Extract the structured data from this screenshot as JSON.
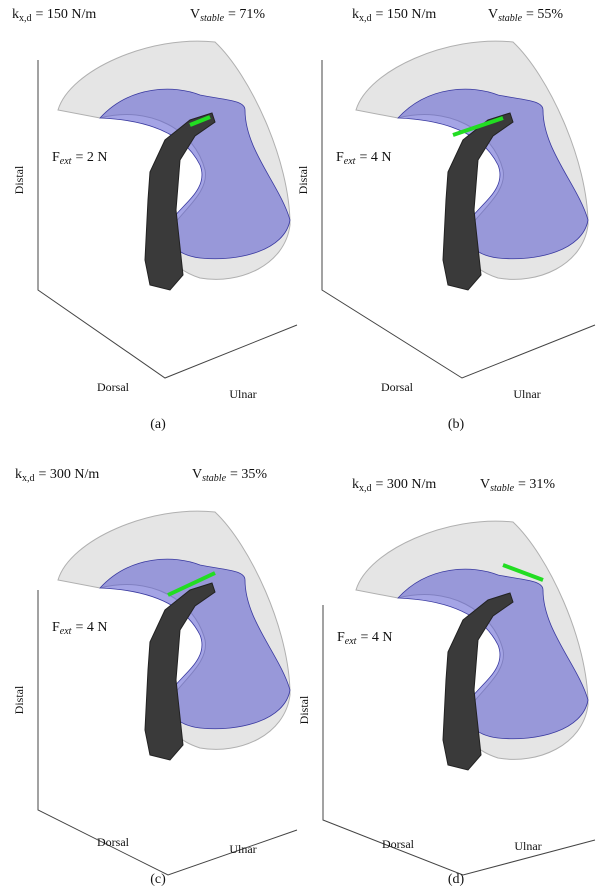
{
  "panels": [
    {
      "stiffness": {
        "symbol": "k",
        "subscript": "x,d",
        "value": "= 150 N/m"
      },
      "volume": {
        "symbol": "V",
        "subscript": "stable",
        "value": "= 71%"
      },
      "force": {
        "symbol": "F",
        "subscript": "ext",
        "value": "= 2 N"
      },
      "axes": {
        "vertical": "Distal",
        "left": "Dorsal",
        "right": "Ulnar"
      },
      "caption": "(a)"
    },
    {
      "stiffness": {
        "symbol": "k",
        "subscript": "x,d",
        "value": "= 150 N/m"
      },
      "volume": {
        "symbol": "V",
        "subscript": "stable",
        "value": "= 55%"
      },
      "force": {
        "symbol": "F",
        "subscript": "ext",
        "value": "= 4 N"
      },
      "axes": {
        "vertical": "Distal",
        "left": "Dorsal",
        "right": "Ulnar"
      },
      "caption": "(b)"
    },
    {
      "stiffness": {
        "symbol": "k",
        "subscript": "x,d",
        "value": "= 300 N/m"
      },
      "volume": {
        "symbol": "V",
        "subscript": "stable",
        "value": "= 35%"
      },
      "force": {
        "symbol": "F",
        "subscript": "ext",
        "value": "= 4 N"
      },
      "axes": {
        "vertical": "Distal",
        "left": "Dorsal",
        "right": "Ulnar"
      },
      "caption": "(c)"
    },
    {
      "stiffness": {
        "symbol": "k",
        "subscript": "x,d",
        "value": "= 300 N/m"
      },
      "volume": {
        "symbol": "V",
        "subscript": "stable",
        "value": "= 31%"
      },
      "force": {
        "symbol": "F",
        "subscript": "ext",
        "value": "= 4 N"
      },
      "axes": {
        "vertical": "Distal",
        "left": "Dorsal",
        "right": "Ulnar"
      },
      "caption": "(d)"
    }
  ]
}
